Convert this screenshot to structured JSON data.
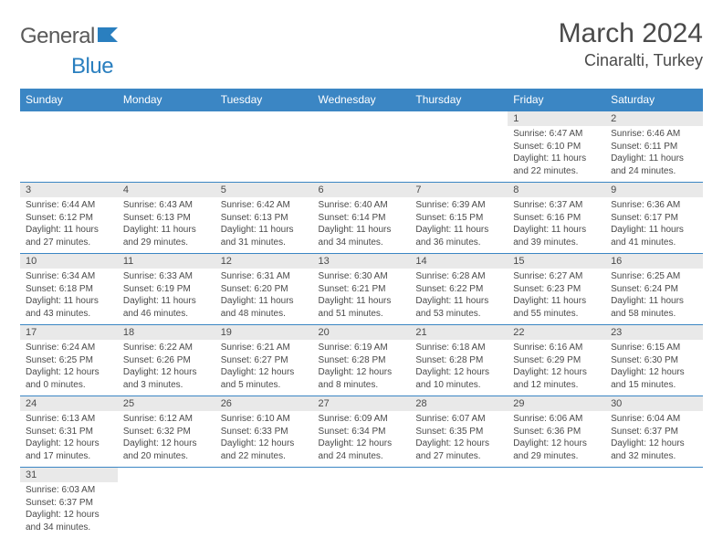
{
  "brand": {
    "part1": "General",
    "part2": "Blue"
  },
  "header": {
    "month": "March 2024",
    "location": "Cinaralti, Turkey"
  },
  "colors": {
    "header_bg": "#3b86c4",
    "header_text": "#ffffff",
    "daynum_bg": "#e9e9e9",
    "cell_border": "#3b86c4",
    "text": "#4a4a4a",
    "brand_blue": "#2a7fbf"
  },
  "typography": {
    "month_fontsize": 30,
    "location_fontsize": 18,
    "dayheader_fontsize": 12,
    "daynum_fontsize": 11,
    "body_fontsize": 10
  },
  "dayHeaders": [
    "Sunday",
    "Monday",
    "Tuesday",
    "Wednesday",
    "Thursday",
    "Friday",
    "Saturday"
  ],
  "weeks": [
    [
      null,
      null,
      null,
      null,
      null,
      {
        "n": "1",
        "sr": "6:47 AM",
        "ss": "6:10 PM",
        "dl": "11 hours and 22 minutes."
      },
      {
        "n": "2",
        "sr": "6:46 AM",
        "ss": "6:11 PM",
        "dl": "11 hours and 24 minutes."
      }
    ],
    [
      {
        "n": "3",
        "sr": "6:44 AM",
        "ss": "6:12 PM",
        "dl": "11 hours and 27 minutes."
      },
      {
        "n": "4",
        "sr": "6:43 AM",
        "ss": "6:13 PM",
        "dl": "11 hours and 29 minutes."
      },
      {
        "n": "5",
        "sr": "6:42 AM",
        "ss": "6:13 PM",
        "dl": "11 hours and 31 minutes."
      },
      {
        "n": "6",
        "sr": "6:40 AM",
        "ss": "6:14 PM",
        "dl": "11 hours and 34 minutes."
      },
      {
        "n": "7",
        "sr": "6:39 AM",
        "ss": "6:15 PM",
        "dl": "11 hours and 36 minutes."
      },
      {
        "n": "8",
        "sr": "6:37 AM",
        "ss": "6:16 PM",
        "dl": "11 hours and 39 minutes."
      },
      {
        "n": "9",
        "sr": "6:36 AM",
        "ss": "6:17 PM",
        "dl": "11 hours and 41 minutes."
      }
    ],
    [
      {
        "n": "10",
        "sr": "6:34 AM",
        "ss": "6:18 PM",
        "dl": "11 hours and 43 minutes."
      },
      {
        "n": "11",
        "sr": "6:33 AM",
        "ss": "6:19 PM",
        "dl": "11 hours and 46 minutes."
      },
      {
        "n": "12",
        "sr": "6:31 AM",
        "ss": "6:20 PM",
        "dl": "11 hours and 48 minutes."
      },
      {
        "n": "13",
        "sr": "6:30 AM",
        "ss": "6:21 PM",
        "dl": "11 hours and 51 minutes."
      },
      {
        "n": "14",
        "sr": "6:28 AM",
        "ss": "6:22 PM",
        "dl": "11 hours and 53 minutes."
      },
      {
        "n": "15",
        "sr": "6:27 AM",
        "ss": "6:23 PM",
        "dl": "11 hours and 55 minutes."
      },
      {
        "n": "16",
        "sr": "6:25 AM",
        "ss": "6:24 PM",
        "dl": "11 hours and 58 minutes."
      }
    ],
    [
      {
        "n": "17",
        "sr": "6:24 AM",
        "ss": "6:25 PM",
        "dl": "12 hours and 0 minutes."
      },
      {
        "n": "18",
        "sr": "6:22 AM",
        "ss": "6:26 PM",
        "dl": "12 hours and 3 minutes."
      },
      {
        "n": "19",
        "sr": "6:21 AM",
        "ss": "6:27 PM",
        "dl": "12 hours and 5 minutes."
      },
      {
        "n": "20",
        "sr": "6:19 AM",
        "ss": "6:28 PM",
        "dl": "12 hours and 8 minutes."
      },
      {
        "n": "21",
        "sr": "6:18 AM",
        "ss": "6:28 PM",
        "dl": "12 hours and 10 minutes."
      },
      {
        "n": "22",
        "sr": "6:16 AM",
        "ss": "6:29 PM",
        "dl": "12 hours and 12 minutes."
      },
      {
        "n": "23",
        "sr": "6:15 AM",
        "ss": "6:30 PM",
        "dl": "12 hours and 15 minutes."
      }
    ],
    [
      {
        "n": "24",
        "sr": "6:13 AM",
        "ss": "6:31 PM",
        "dl": "12 hours and 17 minutes."
      },
      {
        "n": "25",
        "sr": "6:12 AM",
        "ss": "6:32 PM",
        "dl": "12 hours and 20 minutes."
      },
      {
        "n": "26",
        "sr": "6:10 AM",
        "ss": "6:33 PM",
        "dl": "12 hours and 22 minutes."
      },
      {
        "n": "27",
        "sr": "6:09 AM",
        "ss": "6:34 PM",
        "dl": "12 hours and 24 minutes."
      },
      {
        "n": "28",
        "sr": "6:07 AM",
        "ss": "6:35 PM",
        "dl": "12 hours and 27 minutes."
      },
      {
        "n": "29",
        "sr": "6:06 AM",
        "ss": "6:36 PM",
        "dl": "12 hours and 29 minutes."
      },
      {
        "n": "30",
        "sr": "6:04 AM",
        "ss": "6:37 PM",
        "dl": "12 hours and 32 minutes."
      }
    ],
    [
      {
        "n": "31",
        "sr": "6:03 AM",
        "ss": "6:37 PM",
        "dl": "12 hours and 34 minutes."
      },
      null,
      null,
      null,
      null,
      null,
      null
    ]
  ],
  "labels": {
    "sunrise": "Sunrise:",
    "sunset": "Sunset:",
    "daylight": "Daylight:"
  }
}
